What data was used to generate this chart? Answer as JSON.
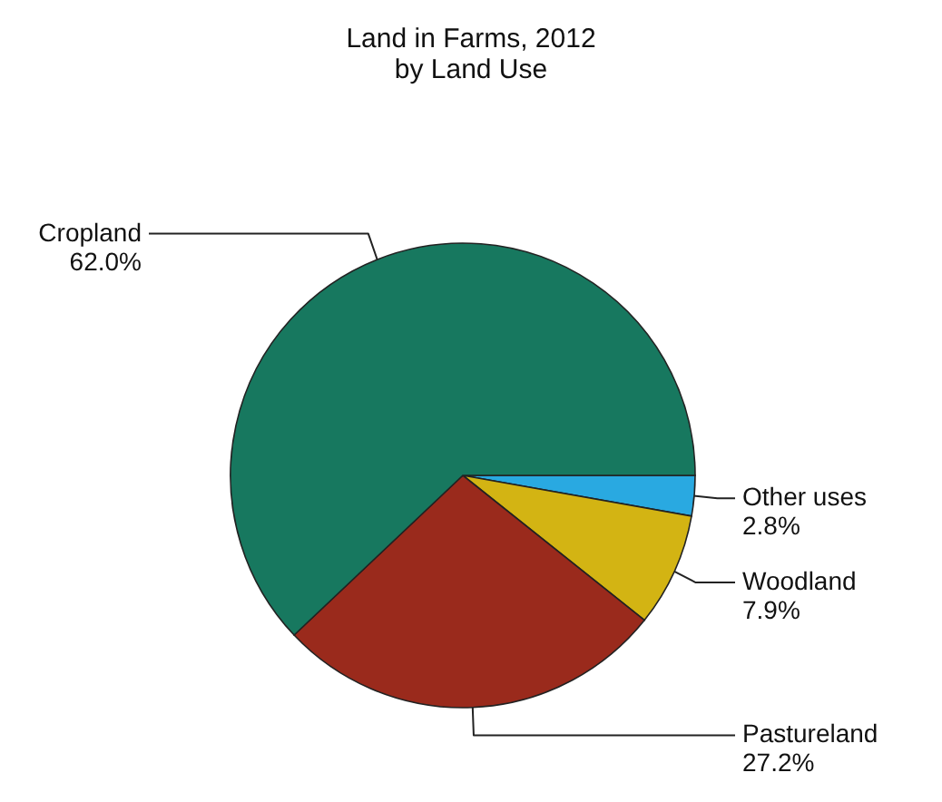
{
  "chart_data": {
    "type": "pie",
    "title": "Land in Farms, 2012\nby Land Use",
    "categories": [
      "Other uses",
      "Woodland",
      "Pastureland",
      "Cropland"
    ],
    "values": [
      2.8,
      7.9,
      27.2,
      62.0
    ],
    "value_labels": [
      "2.8%",
      "7.9%",
      "27.2%",
      "62.0%"
    ],
    "colors": [
      "#29a9e1",
      "#d3b413",
      "#9a2a1c",
      "#17785f"
    ]
  }
}
